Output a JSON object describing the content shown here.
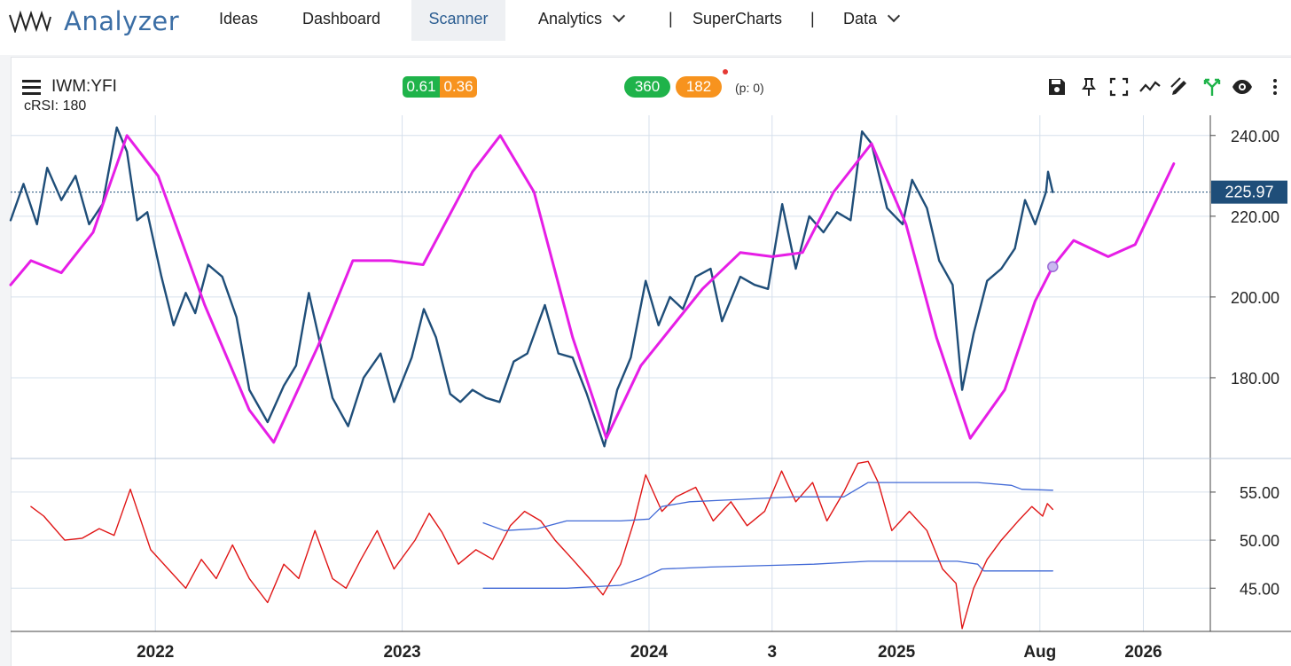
{
  "app": {
    "brand": "Analyzer",
    "nav": [
      {
        "label": "Ideas"
      },
      {
        "label": "Dashboard"
      },
      {
        "label": "Scanner",
        "active": true
      },
      {
        "label": "Analytics",
        "dropdown": true
      },
      {
        "label": "SuperCharts"
      },
      {
        "label": "Data",
        "dropdown": true
      }
    ],
    "separator": "|"
  },
  "chart_header": {
    "symbol": "IWM:YFI",
    "indicator": "cRSI: 180",
    "badge_left_green": "0.61",
    "badge_left_orange": "0.36",
    "badge_mid_green": "360",
    "badge_mid_orange": "182",
    "p_label": "(p: 0)",
    "colors": {
      "green": "#1fb34a",
      "orange": "#f7931e"
    }
  },
  "toolbar": {
    "icons": [
      "save-icon",
      "pin-icon",
      "fullscreen-icon",
      "trend-icon",
      "draw-icon",
      "fork-icon",
      "eye-icon",
      "more-icon"
    ]
  },
  "chart_data": [
    {
      "type": "line",
      "series": [
        {
          "color": "#1f4e79",
          "style": "price",
          "points": [
            [
              "2021-06-01",
              219
            ],
            [
              "2021-06-20",
              228
            ],
            [
              "2021-07-10",
              218
            ],
            [
              "2021-07-25",
              232
            ],
            [
              "2021-08-15",
              224
            ],
            [
              "2021-09-05",
              230
            ],
            [
              "2021-09-25",
              218
            ],
            [
              "2021-10-15",
              223
            ],
            [
              "2021-11-05",
              242
            ],
            [
              "2021-11-20",
              236
            ],
            [
              "2021-12-05",
              219
            ],
            [
              "2021-12-20",
              221
            ],
            [
              "2022-01-10",
              205
            ],
            [
              "2022-01-28",
              193
            ],
            [
              "2022-02-15",
              201
            ],
            [
              "2022-03-01",
              196
            ],
            [
              "2022-03-20",
              208
            ],
            [
              "2022-04-10",
              205
            ],
            [
              "2022-05-01",
              195
            ],
            [
              "2022-05-20",
              177
            ],
            [
              "2022-06-16",
              169
            ],
            [
              "2022-07-10",
              178
            ],
            [
              "2022-07-28",
              183
            ],
            [
              "2022-08-16",
              201
            ],
            [
              "2022-09-01",
              189
            ],
            [
              "2022-09-20",
              175
            ],
            [
              "2022-10-13",
              168
            ],
            [
              "2022-11-05",
              180
            ],
            [
              "2022-11-30",
              186
            ],
            [
              "2022-12-20",
              174
            ],
            [
              "2023-01-15",
              185
            ],
            [
              "2023-02-02",
              197
            ],
            [
              "2023-02-20",
              190
            ],
            [
              "2023-03-13",
              176
            ],
            [
              "2023-03-28",
              174
            ],
            [
              "2023-04-15",
              177
            ],
            [
              "2023-05-05",
              175
            ],
            [
              "2023-05-25",
              174
            ],
            [
              "2023-06-15",
              184
            ],
            [
              "2023-07-05",
              186
            ],
            [
              "2023-07-31",
              198
            ],
            [
              "2023-08-20",
              186
            ],
            [
              "2023-09-10",
              185
            ],
            [
              "2023-10-01",
              176
            ],
            [
              "2023-10-27",
              163
            ],
            [
              "2023-11-15",
              177
            ],
            [
              "2023-12-05",
              185
            ],
            [
              "2023-12-27",
              204
            ],
            [
              "2024-01-15",
              193
            ],
            [
              "2024-02-01",
              200
            ],
            [
              "2024-02-20",
              197
            ],
            [
              "2024-03-10",
              205
            ],
            [
              "2024-04-01",
              207
            ],
            [
              "2024-04-18",
              194
            ],
            [
              "2024-05-15",
              205
            ],
            [
              "2024-06-05",
              203
            ],
            [
              "2024-06-25",
              202
            ],
            [
              "2024-07-16",
              223
            ],
            [
              "2024-08-05",
              207
            ],
            [
              "2024-08-25",
              220
            ],
            [
              "2024-09-15",
              216
            ],
            [
              "2024-10-05",
              221
            ],
            [
              "2024-10-25",
              219
            ],
            [
              "2024-11-11",
              241
            ],
            [
              "2024-11-25",
              238
            ],
            [
              "2024-12-18",
              222
            ],
            [
              "2025-01-10",
              218
            ],
            [
              "2025-01-24",
              229
            ],
            [
              "2025-02-15",
              222
            ],
            [
              "2025-03-05",
              209
            ],
            [
              "2025-03-25",
              203
            ],
            [
              "2025-04-08",
              177
            ],
            [
              "2025-04-25",
              191
            ],
            [
              "2025-05-15",
              204
            ],
            [
              "2025-06-05",
              207
            ],
            [
              "2025-06-25",
              212
            ],
            [
              "2025-07-10",
              224
            ],
            [
              "2025-07-25",
              218
            ],
            [
              "2025-08-10",
              226
            ],
            [
              "2025-08-13",
              231
            ],
            [
              "2025-08-20",
              225.97
            ]
          ]
        },
        {
          "color": "#e61ee6",
          "style": "cycle",
          "points": [
            [
              "2021-06-01",
              203
            ],
            [
              "2021-07-01",
              209
            ],
            [
              "2021-08-15",
              206
            ],
            [
              "2021-10-01",
              216
            ],
            [
              "2021-11-20",
              240
            ],
            [
              "2022-01-05",
              230
            ],
            [
              "2022-03-15",
              198
            ],
            [
              "2022-05-20",
              172
            ],
            [
              "2022-06-25",
              164
            ],
            [
              "2022-08-30",
              188
            ],
            [
              "2022-10-20",
              209
            ],
            [
              "2022-12-15",
              209
            ],
            [
              "2023-02-01",
              208
            ],
            [
              "2023-04-15",
              231
            ],
            [
              "2023-05-26",
              240
            ],
            [
              "2023-07-15",
              226
            ],
            [
              "2023-09-10",
              190
            ],
            [
              "2023-10-30",
              165
            ],
            [
              "2023-12-20",
              183
            ],
            [
              "2024-03-20",
              202
            ],
            [
              "2024-05-15",
              211
            ],
            [
              "2024-07-01",
              210
            ],
            [
              "2024-08-15",
              211
            ],
            [
              "2024-09-30",
              226
            ],
            [
              "2024-11-25",
              238
            ],
            [
              "2025-01-15",
              218
            ],
            [
              "2025-03-01",
              190
            ],
            [
              "2025-04-20",
              165
            ],
            [
              "2025-06-10",
              177
            ],
            [
              "2025-07-25",
              199
            ],
            [
              "2025-08-20",
              207.5
            ],
            [
              "2025-09-20",
              214
            ],
            [
              "2025-11-10",
              210
            ],
            [
              "2025-12-20",
              213
            ],
            [
              "2026-02-15",
              233
            ]
          ]
        }
      ],
      "y_ticks": [
        "240.00",
        "220.00",
        "200.00",
        "180.00"
      ],
      "ylim": [
        160,
        245
      ],
      "last_value_label": "225.97",
      "marker": {
        "x": "2025-08-20",
        "y": 207.5
      }
    },
    {
      "type": "line",
      "series": [
        {
          "color": "#e01515",
          "style": "crsi",
          "points": [
            [
              "2021-07-01",
              53.5
            ],
            [
              "2021-07-20",
              52.5
            ],
            [
              "2021-08-20",
              50
            ],
            [
              "2021-09-15",
              50.2
            ],
            [
              "2021-10-10",
              51.2
            ],
            [
              "2021-11-01",
              50.5
            ],
            [
              "2021-11-25",
              55.3
            ],
            [
              "2021-12-25",
              49
            ],
            [
              "2022-01-20",
              47
            ],
            [
              "2022-02-15",
              45
            ],
            [
              "2022-03-10",
              48
            ],
            [
              "2022-04-01",
              46
            ],
            [
              "2022-04-25",
              49.5
            ],
            [
              "2022-05-20",
              46
            ],
            [
              "2022-06-16",
              43.5
            ],
            [
              "2022-07-10",
              47.5
            ],
            [
              "2022-08-01",
              46
            ],
            [
              "2022-08-25",
              51
            ],
            [
              "2022-09-20",
              46
            ],
            [
              "2022-10-10",
              45
            ],
            [
              "2022-11-01",
              48
            ],
            [
              "2022-11-25",
              51
            ],
            [
              "2022-12-20",
              47
            ],
            [
              "2023-01-20",
              50
            ],
            [
              "2023-02-10",
              52.8
            ],
            [
              "2023-03-01",
              50.8
            ],
            [
              "2023-03-25",
              47.5
            ],
            [
              "2023-04-20",
              49
            ],
            [
              "2023-05-15",
              48
            ],
            [
              "2023-06-10",
              51.5
            ],
            [
              "2023-07-01",
              53
            ],
            [
              "2023-07-25",
              52
            ],
            [
              "2023-08-15",
              50
            ],
            [
              "2023-09-10",
              48
            ],
            [
              "2023-10-05",
              46
            ],
            [
              "2023-10-25",
              44.3
            ],
            [
              "2023-11-20",
              47.5
            ],
            [
              "2023-12-10",
              52
            ],
            [
              "2023-12-27",
              56.8
            ],
            [
              "2024-01-20",
              53
            ],
            [
              "2024-02-10",
              54.5
            ],
            [
              "2024-03-10",
              55.5
            ],
            [
              "2024-04-05",
              52
            ],
            [
              "2024-05-01",
              54
            ],
            [
              "2024-05-25",
              51.5
            ],
            [
              "2024-06-20",
              53
            ],
            [
              "2024-07-15",
              57.2
            ],
            [
              "2024-08-05",
              54
            ],
            [
              "2024-08-30",
              56
            ],
            [
              "2024-09-20",
              52
            ],
            [
              "2024-10-15",
              55
            ],
            [
              "2024-11-05",
              58
            ],
            [
              "2024-11-20",
              58.2
            ],
            [
              "2024-12-05",
              56
            ],
            [
              "2024-12-25",
              51
            ],
            [
              "2025-01-20",
              53
            ],
            [
              "2025-02-15",
              51
            ],
            [
              "2025-03-10",
              47
            ],
            [
              "2025-03-30",
              45.5
            ],
            [
              "2025-04-08",
              40.8
            ],
            [
              "2025-04-25",
              45
            ],
            [
              "2025-05-15",
              48
            ],
            [
              "2025-06-05",
              50
            ],
            [
              "2025-06-30",
              52
            ],
            [
              "2025-07-20",
              53.5
            ],
            [
              "2025-08-05",
              52.5
            ],
            [
              "2025-08-12",
              53.8
            ],
            [
              "2025-08-20",
              53.2
            ]
          ]
        },
        {
          "color": "#4169d6",
          "style": "upper-band",
          "points": [
            [
              "2023-05-01",
              51.8
            ],
            [
              "2023-06-01",
              51
            ],
            [
              "2023-07-20",
              51.2
            ],
            [
              "2023-09-01",
              52
            ],
            [
              "2023-11-20",
              52
            ],
            [
              "2024-01-01",
              52.2
            ],
            [
              "2024-01-20",
              53.5
            ],
            [
              "2024-03-01",
              54
            ],
            [
              "2024-05-01",
              54.2
            ],
            [
              "2024-08-01",
              54.5
            ],
            [
              "2024-10-15",
              54.5
            ],
            [
              "2024-11-20",
              56
            ],
            [
              "2025-05-01",
              56
            ],
            [
              "2025-06-20",
              55.7
            ],
            [
              "2025-07-05",
              55.3
            ],
            [
              "2025-08-20",
              55.2
            ]
          ]
        },
        {
          "color": "#4169d6",
          "style": "lower-band",
          "points": [
            [
              "2023-05-01",
              45
            ],
            [
              "2023-09-01",
              45
            ],
            [
              "2023-11-20",
              45.3
            ],
            [
              "2023-12-20",
              46
            ],
            [
              "2024-01-20",
              47
            ],
            [
              "2024-04-01",
              47.2
            ],
            [
              "2024-09-01",
              47.5
            ],
            [
              "2024-11-20",
              47.8
            ],
            [
              "2025-04-01",
              47.8
            ],
            [
              "2025-05-01",
              47.5
            ],
            [
              "2025-05-10",
              46.8
            ],
            [
              "2025-08-20",
              46.8
            ]
          ]
        }
      ],
      "y_ticks": [
        "55.00",
        "50.00",
        "45.00"
      ],
      "ylim": [
        40.5,
        58.5
      ]
    }
  ],
  "x_axis": {
    "ticks": [
      {
        "label": "2022",
        "date": "2022-01-01"
      },
      {
        "label": "2023",
        "date": "2023-01-01"
      },
      {
        "label": "2024",
        "date": "2024-01-01"
      },
      {
        "label": "3",
        "date": "2024-07-01"
      },
      {
        "label": "2025",
        "date": "2025-01-01"
      },
      {
        "label": "Aug",
        "date": "2025-08-01"
      },
      {
        "label": "2026",
        "date": "2026-01-01"
      }
    ],
    "range": [
      "2021-06-01",
      "2026-04-10"
    ]
  }
}
